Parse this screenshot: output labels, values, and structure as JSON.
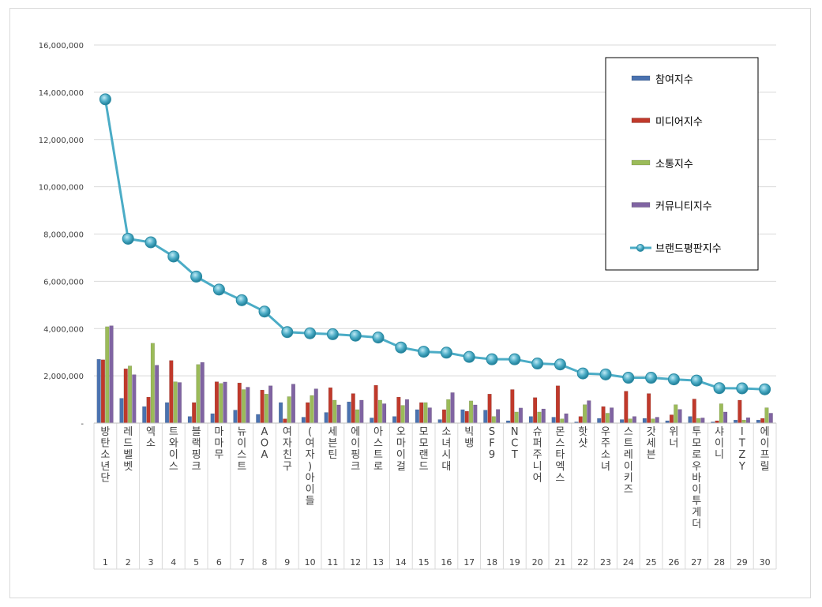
{
  "chart_data": {
    "type": "bar",
    "title": "",
    "xlabel": "",
    "ylabel": "",
    "ylim": [
      0,
      16000000
    ],
    "yticks": [
      0,
      2000000,
      4000000,
      6000000,
      8000000,
      10000000,
      12000000,
      14000000,
      16000000
    ],
    "ytick_labels": [
      "-",
      "2,000,000",
      "4,000,000",
      "6,000,000",
      "8,000,000",
      "10,000,000",
      "12,000,000",
      "14,000,000",
      "16,000,000"
    ],
    "grid": true,
    "legend_position": "top-right",
    "ranks": [
      "1",
      "2",
      "3",
      "4",
      "5",
      "6",
      "7",
      "8",
      "9",
      "10",
      "11",
      "12",
      "13",
      "14",
      "15",
      "16",
      "17",
      "18",
      "19",
      "20",
      "21",
      "22",
      "23",
      "24",
      "25",
      "26",
      "27",
      "28",
      "29",
      "30"
    ],
    "categories": [
      "방탄소년단",
      "레드벨벳",
      "엑소",
      "트와이스",
      "블랙핑크",
      "마마무",
      "뉴이스트",
      "AOA",
      "여자친구",
      "(여자)아이들",
      "세븐틴",
      "에이핑크",
      "아스트로",
      "오마이걸",
      "모모랜드",
      "소녀시대",
      "빅뱅",
      "SF9",
      "NCT",
      "슈퍼주니어",
      "몬스타엑스",
      "핫샷",
      "우주소녀",
      "스트레이키즈",
      "갓세븐",
      "위너",
      "투모로우바이투게더",
      "샤이니",
      "ITZY",
      "에이프릴"
    ],
    "series": [
      {
        "name": "참여지수",
        "type": "bar",
        "color": "#4a72b0",
        "values": [
          2700000,
          1050000,
          700000,
          870000,
          280000,
          400000,
          550000,
          370000,
          870000,
          250000,
          450000,
          900000,
          220000,
          280000,
          570000,
          150000,
          570000,
          550000,
          100000,
          280000,
          250000,
          50000,
          200000,
          150000,
          200000,
          100000,
          280000,
          50000,
          130000,
          130000
        ]
      },
      {
        "name": "미디어지수",
        "type": "bar",
        "color": "#c0392b",
        "values": [
          2680000,
          2300000,
          1100000,
          2650000,
          870000,
          1750000,
          1700000,
          1400000,
          180000,
          870000,
          1500000,
          1250000,
          1600000,
          1100000,
          870000,
          570000,
          500000,
          1230000,
          1420000,
          1080000,
          1580000,
          280000,
          700000,
          1350000,
          1250000,
          350000,
          1020000,
          100000,
          970000,
          200000
        ]
      },
      {
        "name": "소통지수",
        "type": "bar",
        "color": "#9bbb59",
        "values": [
          4080000,
          2420000,
          3380000,
          1750000,
          2480000,
          1680000,
          1420000,
          1230000,
          1120000,
          1170000,
          970000,
          570000,
          970000,
          750000,
          870000,
          1000000,
          940000,
          280000,
          470000,
          470000,
          180000,
          780000,
          420000,
          180000,
          180000,
          780000,
          200000,
          820000,
          130000,
          650000
        ]
      },
      {
        "name": "커뮤니티지수",
        "type": "bar",
        "color": "#8064a2",
        "values": [
          4120000,
          2050000,
          2450000,
          1720000,
          2570000,
          1740000,
          1520000,
          1580000,
          1650000,
          1450000,
          770000,
          970000,
          820000,
          1000000,
          650000,
          1290000,
          770000,
          580000,
          640000,
          600000,
          400000,
          950000,
          650000,
          280000,
          250000,
          580000,
          220000,
          470000,
          230000,
          420000
        ]
      },
      {
        "name": "브랜드평판지수",
        "type": "line",
        "color": "#4bacc6",
        "values": [
          13700000,
          7800000,
          7650000,
          7050000,
          6200000,
          5650000,
          5200000,
          4720000,
          3850000,
          3800000,
          3760000,
          3700000,
          3620000,
          3200000,
          3020000,
          2980000,
          2800000,
          2700000,
          2700000,
          2520000,
          2480000,
          2100000,
          2060000,
          1920000,
          1920000,
          1850000,
          1800000,
          1480000,
          1470000,
          1430000
        ]
      }
    ]
  }
}
